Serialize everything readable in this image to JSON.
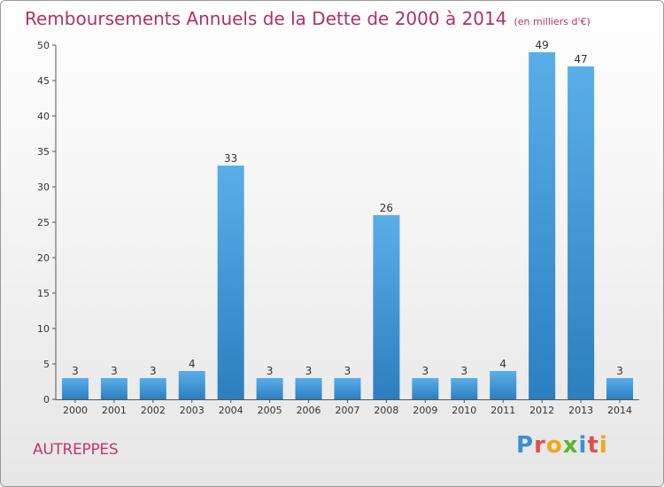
{
  "title": "Remboursements Annuels de la Dette de 2000 à 2014",
  "unit": "(en milliers d'€)",
  "commune": "AUTREPPES",
  "logo": {
    "letters": [
      "P",
      "r",
      "o",
      "x",
      "i",
      "t",
      "i"
    ],
    "colors": [
      "#3a8fd6",
      "#e0504a",
      "#f2a516",
      "#5cb531",
      "#3a8fd6",
      "#e0504a",
      "#f2a516"
    ]
  },
  "chart_data": {
    "type": "bar",
    "categories": [
      "2000",
      "2001",
      "2002",
      "2003",
      "2004",
      "2005",
      "2006",
      "2007",
      "2008",
      "2009",
      "2010",
      "2011",
      "2012",
      "2013",
      "2014"
    ],
    "values": [
      3,
      3,
      3,
      4,
      33,
      3,
      3,
      3,
      26,
      3,
      3,
      4,
      49,
      47,
      3
    ],
    "ylim": [
      0,
      50
    ],
    "yticks": [
      "0",
      "5",
      "10",
      "15",
      "20",
      "25",
      "30",
      "35",
      "40",
      "45",
      "50"
    ],
    "grid": false,
    "bar_color_top": "#5aaee8",
    "bar_color_bottom": "#2b7fc0"
  }
}
